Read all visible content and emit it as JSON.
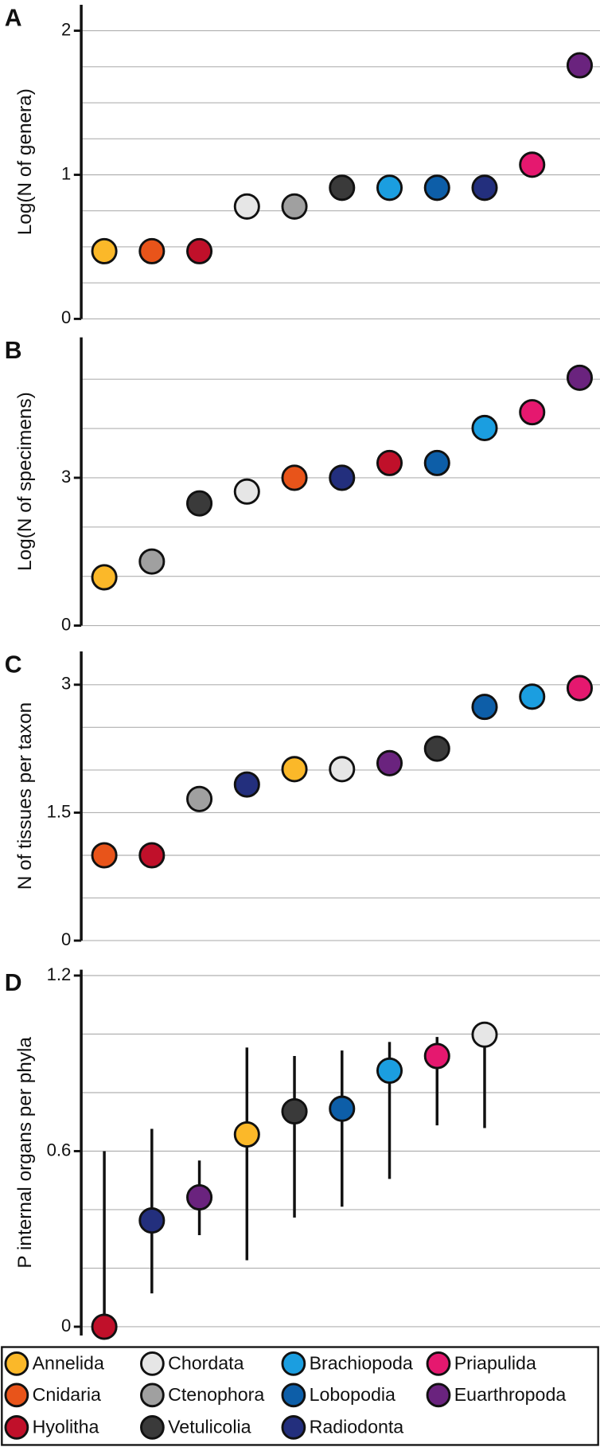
{
  "chart_data": [
    {
      "type": "scatter",
      "panel": "A",
      "y_label": "Log(N of genera)",
      "categories": [
        "Annelida",
        "Cnidaria",
        "Hyolitha",
        "Chordata",
        "Ctenophora",
        "Vetulicolia",
        "Brachiopoda",
        "Lobopodia",
        "Radiodonta",
        "Priapulida",
        "Euarthropoda"
      ],
      "values": [
        0.47,
        0.47,
        0.47,
        0.78,
        0.78,
        0.91,
        0.91,
        0.91,
        0.91,
        1.07,
        1.76
      ],
      "ylim": [
        0,
        2.18
      ],
      "yticks": [
        0,
        1,
        2
      ],
      "grid": [
        0,
        0.25,
        0.5,
        0.75,
        1,
        1.25,
        1.5,
        1.75,
        2
      ]
    },
    {
      "type": "scatter",
      "panel": "B",
      "y_label": "Log(N of specimens)",
      "categories": [
        "Annelida",
        "Ctenophora",
        "Vetulicolia",
        "Chordata",
        "Cnidaria",
        "Radiodonta",
        "Hyolitha",
        "Lobopodia",
        "Brachiopoda",
        "Priapulida",
        "Euarthropoda"
      ],
      "values": [
        0.98,
        1.3,
        2.48,
        2.72,
        3.0,
        3.0,
        3.3,
        3.3,
        4.01,
        4.33,
        5.03
      ],
      "ylim": [
        0,
        5.85
      ],
      "yticks": [
        0,
        3
      ],
      "grid": [
        0,
        1,
        2,
        3,
        4,
        5
      ]
    },
    {
      "type": "scatter",
      "panel": "C",
      "y_label": "N of tissues per taxon",
      "categories": [
        "Cnidaria",
        "Hyolitha",
        "Ctenophora",
        "Radiodonta",
        "Annelida",
        "Chordata",
        "Euarthropoda",
        "Vetulicolia",
        "Lobopodia",
        "Brachiopoda",
        "Priapulida"
      ],
      "values": [
        1.0,
        1.0,
        1.66,
        1.83,
        2.01,
        2.01,
        2.08,
        2.25,
        2.74,
        2.86,
        2.96
      ],
      "ylim": [
        0,
        3.39
      ],
      "yticks": [
        0,
        1.5,
        3
      ],
      "grid": [
        0,
        0.5,
        1,
        1.5,
        2,
        2.5,
        3
      ]
    },
    {
      "type": "errorbar",
      "panel": "D",
      "y_label": "P internal organs per phyla",
      "categories": [
        "Hyolitha",
        "Radiodonta",
        "Euarthropoda",
        "Annelida",
        "Vetulicolia",
        "Lobopodia",
        "Brachiopoda",
        "Priapulida",
        "Chordata"
      ],
      "values": [
        0,
        0.363,
        0.442,
        0.657,
        0.736,
        0.745,
        0.875,
        0.925,
        0.998
      ],
      "lower": [
        0,
        0.114,
        0.313,
        0.227,
        0.373,
        0.41,
        0.505,
        0.688,
        0.679
      ],
      "upper": [
        0.6,
        0.676,
        0.568,
        0.954,
        0.925,
        0.944,
        0.973,
        0.99,
        0.998
      ],
      "ylim": [
        -0.03,
        1.22
      ],
      "yticks": [
        0,
        0.6,
        1.2
      ],
      "grid": [
        0,
        0.2,
        0.4,
        0.6,
        0.8,
        1.0,
        1.2
      ]
    }
  ],
  "legend": {
    "entries": [
      {
        "name": "Annelida",
        "color": "#fbb829"
      },
      {
        "name": "Cnidaria",
        "color": "#e8541a"
      },
      {
        "name": "Hyolitha",
        "color": "#c0102a"
      },
      {
        "name": "Chordata",
        "color": "#e6e6e6"
      },
      {
        "name": "Ctenophora",
        "color": "#a0a0a0"
      },
      {
        "name": "Vetulicolia",
        "color": "#3a3a3a"
      },
      {
        "name": "Brachiopoda",
        "color": "#1b9ee0"
      },
      {
        "name": "Lobopodia",
        "color": "#0d5ea8"
      },
      {
        "name": "Radiodonta",
        "color": "#232f7d"
      },
      {
        "name": "Priapulida",
        "color": "#e5186f"
      },
      {
        "name": "Euarthropoda",
        "color": "#6a237e"
      }
    ]
  }
}
